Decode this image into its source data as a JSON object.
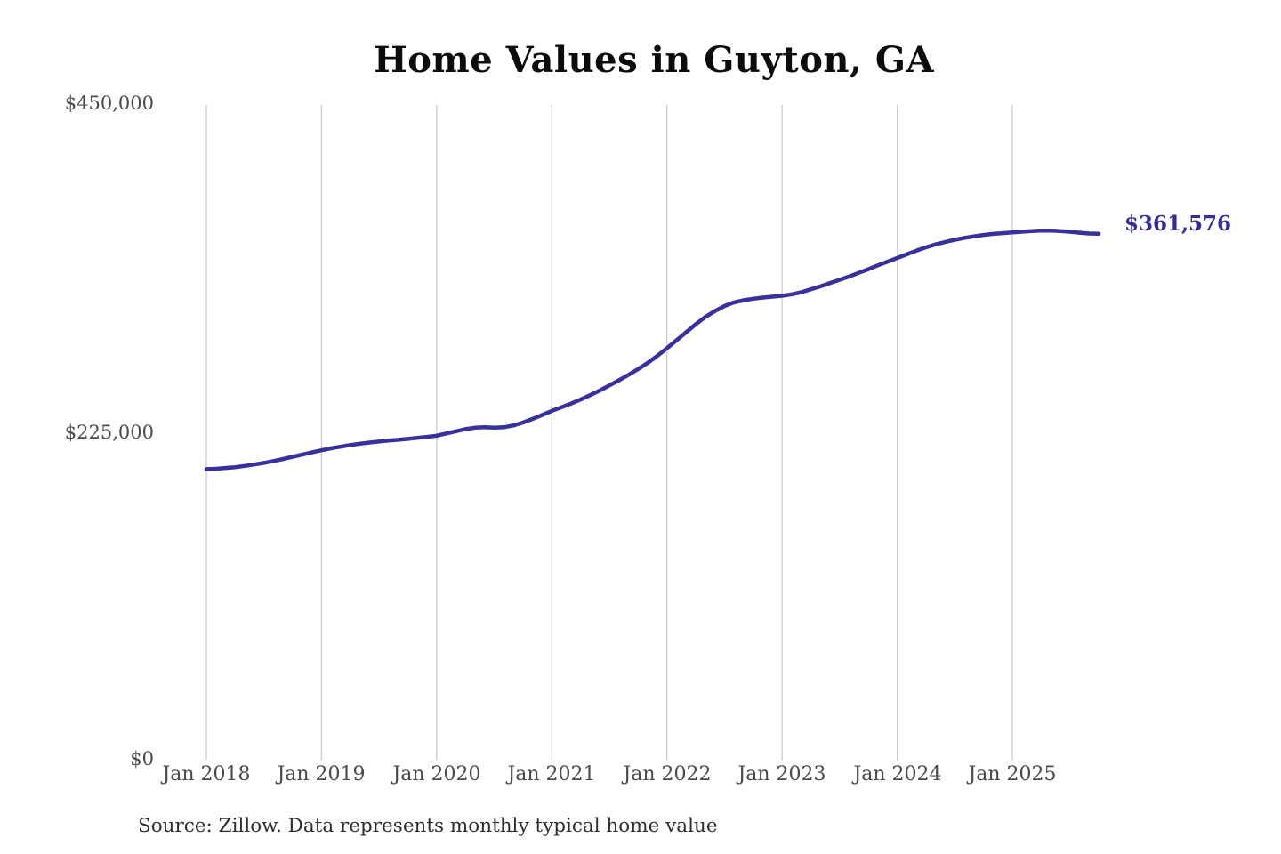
{
  "title": "Home Values in Guyton, GA",
  "annotation": {
    "end_value_label": "$361,576"
  },
  "source_note": "Source: Zillow. Data represents monthly typical home value",
  "colors": {
    "line": "#38319c",
    "end_label": "#332d96",
    "grid": "#cccccc",
    "tick_text": "#4a4a4a",
    "title_text": "#0b0b0b",
    "source_text": "#2e2e2e",
    "background": "#ffffff"
  },
  "chart_data": {
    "type": "line",
    "title": "Home Values in Guyton, GA",
    "xlabel": "",
    "ylabel": "",
    "ylim": [
      0,
      450000
    ],
    "grid": "vertical-only",
    "legend": "none",
    "x_start": "Jan 2018",
    "x_end": "Oct 2025",
    "x_frequency": "monthly",
    "x_tick_labels": [
      "Jan 2018",
      "Jan 2019",
      "Jan 2020",
      "Jan 2021",
      "Jan 2022",
      "Jan 2023",
      "Jan 2024",
      "Jan 2025"
    ],
    "x_months_per_tick": 12,
    "y_ticks": [
      {
        "label": "$0",
        "value": 0
      },
      {
        "label": "$225,000",
        "value": 225000
      },
      {
        "label": "$450,000",
        "value": 450000
      }
    ],
    "final_value": 361576,
    "final_value_label": "$361,576",
    "series": [
      {
        "name": "Monthly typical home value",
        "values": [
          200000,
          200300,
          200800,
          201400,
          202200,
          203200,
          204300,
          205600,
          207000,
          208500,
          210000,
          211500,
          213000,
          214300,
          215500,
          216600,
          217500,
          218300,
          219000,
          219600,
          220200,
          220800,
          221500,
          222200,
          223000,
          224500,
          226000,
          227500,
          228500,
          228800,
          228500,
          228800,
          230000,
          232000,
          234500,
          237200,
          240000,
          242500,
          245000,
          247800,
          250800,
          254000,
          257500,
          261000,
          264800,
          268800,
          273000,
          277800,
          283000,
          288500,
          294000,
          299500,
          304500,
          308500,
          312000,
          314500,
          316000,
          317000,
          317800,
          318400,
          319000,
          320000,
          321500,
          323500,
          325500,
          327800,
          330000,
          332300,
          334800,
          337300,
          340000,
          342500,
          345000,
          347500,
          350000,
          352300,
          354300,
          356000,
          357500,
          358800,
          359800,
          360800,
          361500,
          362000,
          362500,
          363000,
          363500,
          363800,
          363800,
          363500,
          363000,
          362300,
          361800,
          361576
        ]
      }
    ]
  }
}
